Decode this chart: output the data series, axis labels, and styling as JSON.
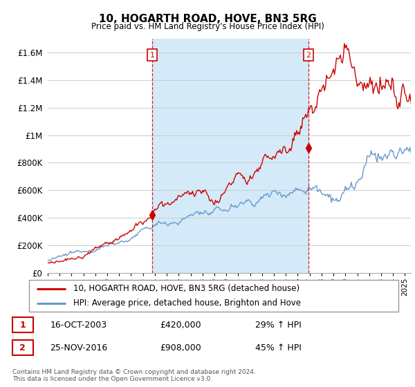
{
  "title": "10, HOGARTH ROAD, HOVE, BN3 5RG",
  "subtitle": "Price paid vs. HM Land Registry's House Price Index (HPI)",
  "ylim": [
    0,
    1700000
  ],
  "yticks": [
    0,
    200000,
    400000,
    600000,
    800000,
    1000000,
    1200000,
    1400000,
    1600000
  ],
  "ytick_labels": [
    "£0",
    "£200K",
    "£400K",
    "£600K",
    "£800K",
    "£1M",
    "£1.2M",
    "£1.4M",
    "£1.6M"
  ],
  "legend_line1": "10, HOGARTH ROAD, HOVE, BN3 5RG (detached house)",
  "legend_line2": "HPI: Average price, detached house, Brighton and Hove",
  "line1_color": "#cc0000",
  "line2_color": "#6699cc",
  "shade_color": "#d0e8f8",
  "ann1_x": 2003.79,
  "ann1_y": 420000,
  "ann2_x": 2016.9,
  "ann2_y": 908000,
  "footer1": "Contains HM Land Registry data © Crown copyright and database right 2024.",
  "footer2": "This data is licensed under the Open Government Licence v3.0.",
  "table_rows": [
    {
      "num": "1",
      "date": "16-OCT-2003",
      "price": "£420,000",
      "hpi": "29% ↑ HPI"
    },
    {
      "num": "2",
      "date": "25-NOV-2016",
      "price": "£908,000",
      "hpi": "45% ↑ HPI"
    }
  ],
  "xmin": 1995.0,
  "xmax": 2025.5
}
